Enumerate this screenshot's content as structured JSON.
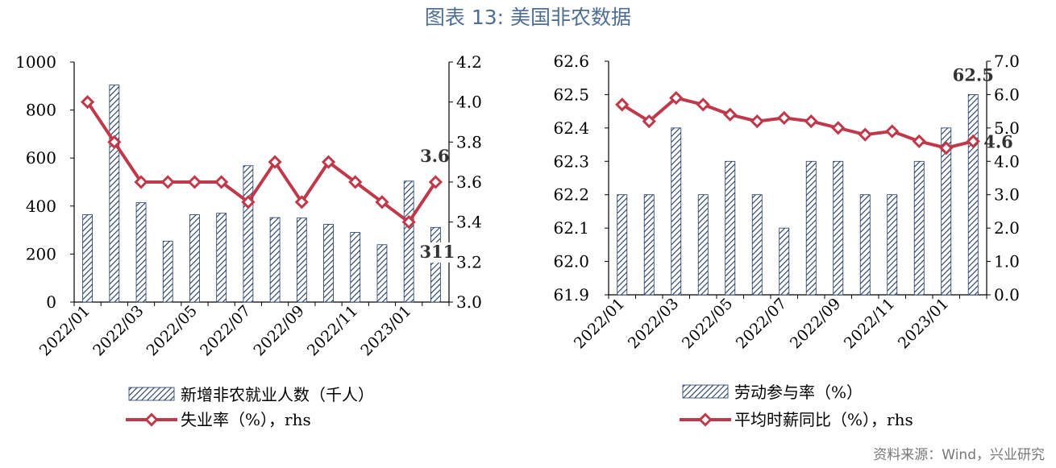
{
  "page": {
    "title": "图表 13: 美国非农数据",
    "source": "资料来源：Wind，兴业研究"
  },
  "colors": {
    "bar_stroke": "#1f3864",
    "line": "#c0394b",
    "marker_fill": "#ffffff",
    "title": "#4e6f93"
  },
  "chart_data": [
    {
      "type": "bar",
      "months": [
        "2022/01",
        "2022/02",
        "2022/03",
        "2022/04",
        "2022/05",
        "2022/06",
        "2022/07",
        "2022/08",
        "2022/09",
        "2022/10",
        "2022/11",
        "2022/12",
        "2023/01",
        "2023/02"
      ],
      "x_tick_labels": [
        "2022/01",
        "2022/03",
        "2022/05",
        "2022/07",
        "2022/09",
        "2022/11",
        "2023/01"
      ],
      "y_left": {
        "ticks": [
          "0",
          "200",
          "400",
          "600",
          "800",
          "1000"
        ],
        "range": [
          0,
          1000
        ]
      },
      "y_right": {
        "ticks": [
          "3.0",
          "3.2",
          "3.4",
          "3.6",
          "3.8",
          "4.0",
          "4.2"
        ],
        "range": [
          3.0,
          4.2
        ]
      },
      "series": [
        {
          "name": "新增非农就业人数（千人）",
          "type": "bar",
          "axis": "left",
          "values": [
            364,
            904,
            414,
            254,
            364,
            370,
            568,
            352,
            350,
            324,
            290,
            239,
            504,
            311
          ]
        },
        {
          "name": "失业率（%），rhs",
          "type": "line",
          "axis": "right",
          "values": [
            4.0,
            3.8,
            3.6,
            3.6,
            3.6,
            3.6,
            3.5,
            3.7,
            3.5,
            3.7,
            3.6,
            3.5,
            3.4,
            3.6
          ]
        }
      ],
      "annotations": [
        {
          "text": "3.6",
          "series": 1,
          "index": 13
        },
        {
          "text": "311",
          "series": 0,
          "index": 13
        }
      ]
    },
    {
      "type": "bar",
      "months": [
        "2022/01",
        "2022/02",
        "2022/03",
        "2022/04",
        "2022/05",
        "2022/06",
        "2022/07",
        "2022/08",
        "2022/09",
        "2022/10",
        "2022/11",
        "2022/12",
        "2023/01",
        "2023/02"
      ],
      "x_tick_labels": [
        "2022/01",
        "2022/03",
        "2022/05",
        "2022/07",
        "2022/09",
        "2022/11",
        "2023/01"
      ],
      "y_left": {
        "ticks": [
          "61.9",
          "62.0",
          "62.1",
          "62.2",
          "62.3",
          "62.4",
          "62.5",
          "62.6"
        ],
        "range": [
          61.9,
          62.6
        ]
      },
      "y_right": {
        "ticks": [
          "0.0",
          "1.0",
          "2.0",
          "3.0",
          "4.0",
          "5.0",
          "6.0",
          "7.0"
        ],
        "range": [
          0.0,
          7.0
        ]
      },
      "series": [
        {
          "name": "劳动参与率（%）",
          "type": "bar",
          "axis": "left",
          "values": [
            62.2,
            62.2,
            62.4,
            62.2,
            62.3,
            62.2,
            62.1,
            62.3,
            62.3,
            62.2,
            62.2,
            62.3,
            62.4,
            62.5
          ]
        },
        {
          "name": "平均时薪同比（%），rhs",
          "type": "line",
          "axis": "right",
          "values": [
            5.7,
            5.2,
            5.9,
            5.7,
            5.4,
            5.2,
            5.3,
            5.2,
            5.0,
            4.8,
            4.9,
            4.6,
            4.4,
            4.6
          ]
        }
      ],
      "annotations": [
        {
          "text": "62.5",
          "series": 0,
          "index": 13
        },
        {
          "text": "4.6",
          "series": 1,
          "index": 13
        }
      ]
    }
  ]
}
